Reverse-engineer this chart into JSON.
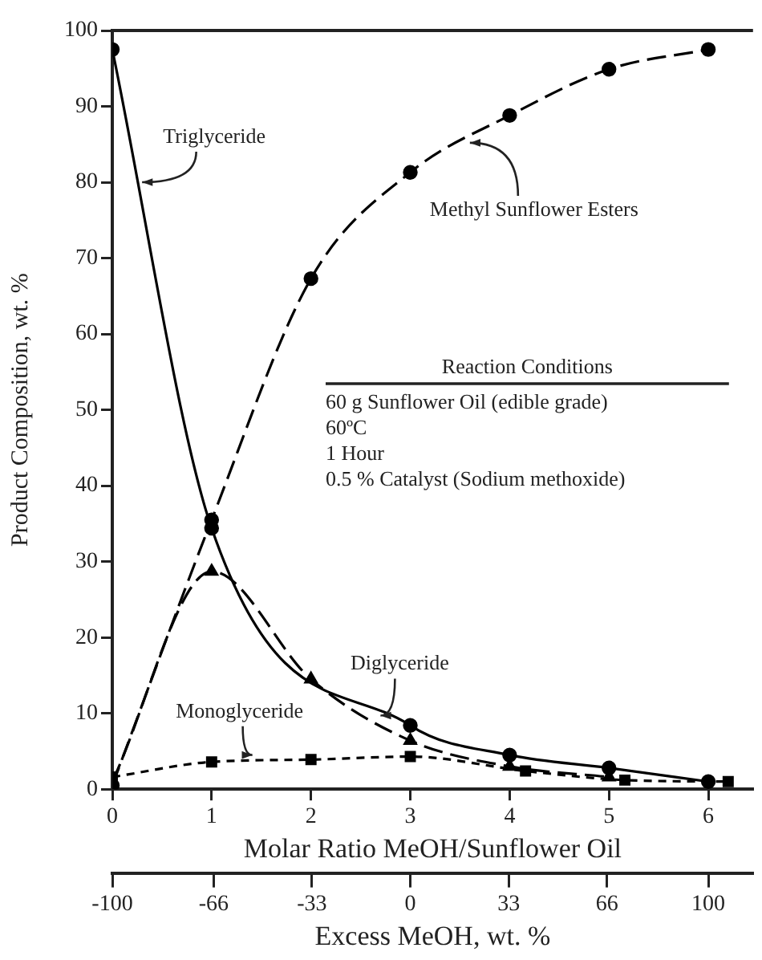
{
  "chart_data": {
    "type": "line",
    "xlabel": "Molar Ratio MeOH/Sunflower Oil",
    "ylabel": "Product Composition, wt. %",
    "x2label": "Excess MeOH, wt. %",
    "x": [
      0,
      1,
      2,
      3,
      4,
      5,
      6
    ],
    "series": [
      {
        "color": "#000000",
        "marker": "circle",
        "line_style": "solid",
        "values": [
          97.5,
          34.4,
          null,
          8.4,
          4.5,
          2.8,
          1.0
        ]
      },
      {
        "color": "#000000",
        "marker": "triangle",
        "line_style": "dashed",
        "values": [
          1.0,
          28.7,
          14.5,
          6.4,
          3.0,
          1.6,
          null
        ]
      },
      {
        "color": "#000000",
        "marker": "square",
        "line_style": "dotted",
        "x": [
          0,
          1,
          2,
          3,
          4.16,
          5.16,
          6.2
        ],
        "values": [
          1.6,
          3.6,
          3.9,
          4.3,
          2.4,
          1.2,
          1.0
        ]
      },
      {
        "color": "#000000",
        "marker": "circle",
        "line_style": "dashed",
        "values": [
          0.5,
          35.5,
          67.3,
          81.3,
          88.8,
          94.9,
          97.5
        ]
      }
    ],
    "xlim": [
      0,
      6.45
    ],
    "xticks": [
      0,
      1,
      2,
      3,
      4,
      5,
      6
    ],
    "x2lim": [
      -100,
      115
    ],
    "x2ticks": [
      -100,
      -66,
      -33,
      0,
      33,
      66,
      100
    ],
    "ylim": [
      0,
      100
    ],
    "yticks": [
      0,
      10,
      20,
      30,
      40,
      50,
      60,
      70,
      80,
      90,
      100
    ],
    "grid": false,
    "legend": false,
    "annotations": [
      {
        "text": "Triglyceride",
        "x": 0.3,
        "y": 80
      },
      {
        "text": "Methyl Sunflower Esters",
        "x": 3.6,
        "y": 85.2
      },
      {
        "text": "Diglyceride",
        "x": 2.7,
        "y": 9.7
      },
      {
        "text": "Monoglyceride",
        "x": 1.41,
        "y": 4.5
      },
      "Reaction Conditions",
      "60 g Sunflower Oil (edible grade)",
      "60ºC",
      "1 Hour",
      "0.5 % Catalyst (Sodium methoxide)"
    ]
  }
}
